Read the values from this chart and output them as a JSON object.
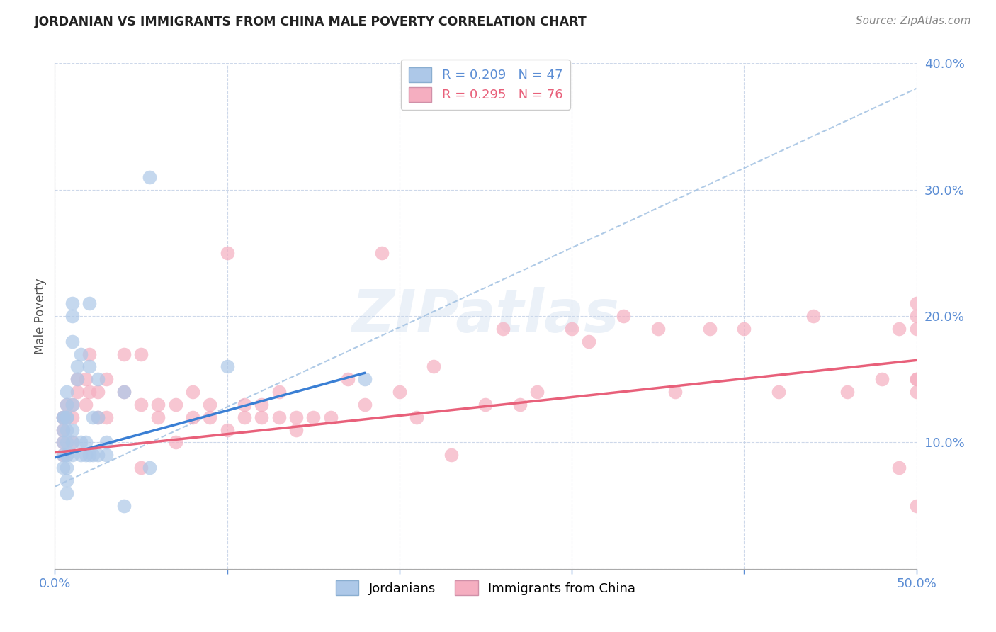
{
  "title": "JORDANIAN VS IMMIGRANTS FROM CHINA MALE POVERTY CORRELATION CHART",
  "source": "Source: ZipAtlas.com",
  "ylabel_label": "Male Poverty",
  "x_min": 0.0,
  "x_max": 0.5,
  "y_min": 0.0,
  "y_max": 0.4,
  "x_ticks": [
    0.0,
    0.1,
    0.2,
    0.3,
    0.4,
    0.5
  ],
  "y_ticks": [
    0.0,
    0.1,
    0.2,
    0.3,
    0.4
  ],
  "jordanian_color": "#adc8e8",
  "china_color": "#f5aec0",
  "jordanian_line_color": "#3a7fd4",
  "china_line_color": "#e8607a",
  "dash_line_color": "#9bbde0",
  "legend_r1_val": "0.209",
  "legend_n1_val": "47",
  "legend_r2_val": "0.295",
  "legend_n2_val": "76",
  "watermark": "ZIPatlas",
  "jordanians_label": "Jordanians",
  "china_label": "Immigrants from China",
  "tick_color": "#5b8dd4",
  "jordanian_scatter_x": [
    0.005,
    0.005,
    0.005,
    0.005,
    0.005,
    0.005,
    0.007,
    0.007,
    0.007,
    0.007,
    0.007,
    0.007,
    0.007,
    0.007,
    0.007,
    0.007,
    0.007,
    0.01,
    0.01,
    0.01,
    0.01,
    0.01,
    0.01,
    0.01,
    0.013,
    0.013,
    0.015,
    0.015,
    0.015,
    0.018,
    0.018,
    0.02,
    0.02,
    0.02,
    0.022,
    0.022,
    0.025,
    0.025,
    0.025,
    0.03,
    0.03,
    0.04,
    0.04,
    0.055,
    0.055,
    0.1,
    0.18
  ],
  "jordanian_scatter_y": [
    0.12,
    0.12,
    0.11,
    0.1,
    0.09,
    0.08,
    0.14,
    0.13,
    0.12,
    0.12,
    0.11,
    0.1,
    0.09,
    0.09,
    0.08,
    0.07,
    0.06,
    0.21,
    0.2,
    0.18,
    0.13,
    0.11,
    0.1,
    0.09,
    0.16,
    0.15,
    0.17,
    0.1,
    0.09,
    0.1,
    0.09,
    0.21,
    0.16,
    0.09,
    0.12,
    0.09,
    0.15,
    0.12,
    0.09,
    0.1,
    0.09,
    0.14,
    0.05,
    0.31,
    0.08,
    0.16,
    0.15
  ],
  "china_scatter_x": [
    0.005,
    0.005,
    0.005,
    0.005,
    0.005,
    0.007,
    0.007,
    0.01,
    0.01,
    0.01,
    0.013,
    0.013,
    0.018,
    0.018,
    0.02,
    0.02,
    0.025,
    0.025,
    0.03,
    0.03,
    0.04,
    0.04,
    0.05,
    0.05,
    0.05,
    0.06,
    0.06,
    0.07,
    0.07,
    0.08,
    0.08,
    0.09,
    0.09,
    0.1,
    0.1,
    0.11,
    0.11,
    0.12,
    0.12,
    0.13,
    0.13,
    0.14,
    0.14,
    0.15,
    0.16,
    0.17,
    0.18,
    0.19,
    0.2,
    0.21,
    0.22,
    0.23,
    0.25,
    0.26,
    0.27,
    0.28,
    0.3,
    0.31,
    0.33,
    0.35,
    0.36,
    0.38,
    0.4,
    0.42,
    0.44,
    0.46,
    0.48,
    0.49,
    0.49,
    0.5,
    0.5,
    0.5,
    0.5,
    0.5,
    0.5,
    0.5
  ],
  "china_scatter_y": [
    0.12,
    0.12,
    0.11,
    0.1,
    0.09,
    0.13,
    0.12,
    0.13,
    0.12,
    0.1,
    0.15,
    0.14,
    0.15,
    0.13,
    0.17,
    0.14,
    0.14,
    0.12,
    0.15,
    0.12,
    0.17,
    0.14,
    0.17,
    0.13,
    0.08,
    0.13,
    0.12,
    0.13,
    0.1,
    0.14,
    0.12,
    0.13,
    0.12,
    0.25,
    0.11,
    0.13,
    0.12,
    0.13,
    0.12,
    0.14,
    0.12,
    0.12,
    0.11,
    0.12,
    0.12,
    0.15,
    0.13,
    0.25,
    0.14,
    0.12,
    0.16,
    0.09,
    0.13,
    0.19,
    0.13,
    0.14,
    0.19,
    0.18,
    0.2,
    0.19,
    0.14,
    0.19,
    0.19,
    0.14,
    0.2,
    0.14,
    0.15,
    0.19,
    0.08,
    0.21,
    0.2,
    0.15,
    0.15,
    0.19,
    0.05,
    0.14
  ],
  "jord_line_x0": 0.0,
  "jord_line_x1": 0.18,
  "jord_line_y0": 0.088,
  "jord_line_y1": 0.155,
  "china_line_x0": 0.0,
  "china_line_x1": 0.5,
  "china_line_y0": 0.092,
  "china_line_y1": 0.165,
  "dash_line_x0": 0.0,
  "dash_line_x1": 0.5,
  "dash_line_y0": 0.065,
  "dash_line_y1": 0.38
}
